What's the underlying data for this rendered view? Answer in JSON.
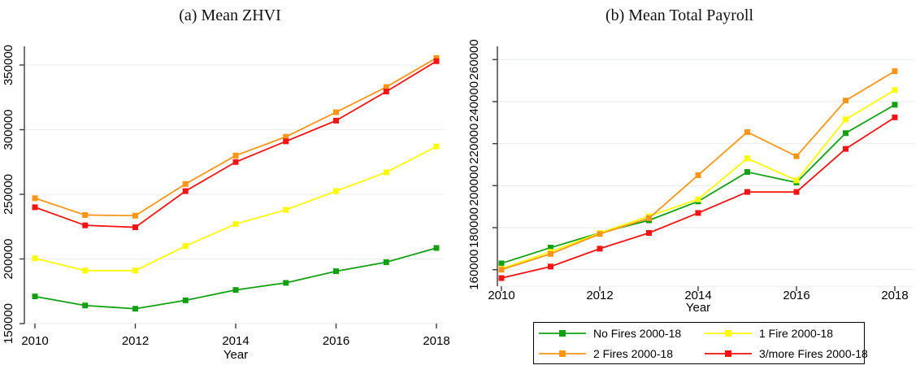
{
  "page": {
    "background": "#ffffff"
  },
  "chart_data": [
    {
      "type": "line",
      "title": "(a) Mean ZHVI",
      "xlabel": "Year",
      "x": [
        2010,
        2011,
        2012,
        2013,
        2014,
        2015,
        2016,
        2017,
        2018
      ],
      "xticks": [
        2010,
        2012,
        2014,
        2016,
        2018
      ],
      "yticks": [
        150000,
        200000,
        250000,
        300000,
        350000
      ],
      "ylim": [
        150000,
        360000
      ],
      "grid": true,
      "marker": "square",
      "series": [
        {
          "name": "No Fires 2000-18",
          "color": "#12a012",
          "values": [
            171000,
            164000,
            161500,
            168000,
            176000,
            181500,
            190500,
            197500,
            208500
          ]
        },
        {
          "name": "1 Fire 2000-18",
          "color": "#fcfc04",
          "values": [
            200500,
            191000,
            191000,
            210000,
            227000,
            238000,
            252500,
            267000,
            287000
          ]
        },
        {
          "name": "2 Fires 2000-18",
          "color": "#fa9617",
          "values": [
            247000,
            234000,
            233500,
            258000,
            280000,
            294500,
            313500,
            333000,
            355500
          ]
        },
        {
          "name": "3/more Fires 2000-18",
          "color": "#f51313",
          "values": [
            240000,
            226000,
            224500,
            252500,
            275000,
            291000,
            307000,
            329500,
            353000
          ]
        }
      ]
    },
    {
      "type": "line",
      "title": "(b) Mean Total Payroll",
      "xlabel": "Year",
      "x": [
        2010,
        2011,
        2012,
        2013,
        2014,
        2015,
        2016,
        2017,
        2018
      ],
      "xticks": [
        2010,
        2012,
        2014,
        2016,
        2018
      ],
      "yticks": [
        160000,
        180000,
        200000,
        220000,
        240000,
        260000
      ],
      "ylim": [
        153000,
        266000
      ],
      "grid": true,
      "marker": "square",
      "series": [
        {
          "name": "No Fires 2000-18",
          "color": "#12a012",
          "values": [
            163000,
            170500,
            177500,
            183500,
            192500,
            206500,
            201500,
            225000,
            238500
          ]
        },
        {
          "name": "1 Fire 2000-18",
          "color": "#fcfc04",
          "values": [
            160500,
            168500,
            177500,
            185500,
            193500,
            213000,
            202500,
            231500,
            245500
          ]
        },
        {
          "name": "2 Fires 2000-18",
          "color": "#fa9617",
          "values": [
            160000,
            167500,
            177000,
            184500,
            205000,
            225500,
            214000,
            240500,
            254500
          ]
        },
        {
          "name": "3/more Fires 2000-18",
          "color": "#f51313",
          "values": [
            156000,
            161500,
            170000,
            177500,
            187000,
            197000,
            197000,
            217500,
            232500
          ]
        }
      ]
    }
  ],
  "legend": {
    "position": "below right chart",
    "entries": [
      {
        "label": "No Fires 2000-18",
        "color": "#12a012"
      },
      {
        "label": "1 Fire 2000-18",
        "color": "#fcfc04"
      },
      {
        "label": "2 Fires 2000-18",
        "color": "#fa9617"
      },
      {
        "label": "3/more Fires 2000-18",
        "color": "#f51313"
      }
    ]
  },
  "style": {
    "gridline_color": "#e8edee",
    "axis_color": "#3a3a3a",
    "text_color": "#000000"
  }
}
